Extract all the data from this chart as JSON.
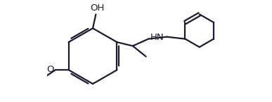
{
  "background_color": "#ffffff",
  "line_color": "#1a1a2e",
  "line_width": 1.6,
  "font_size": 9.5,
  "figsize": [
    3.87,
    1.46
  ],
  "dpi": 100,
  "xlim": [
    -1.8,
    5.2
  ],
  "ylim": [
    -1.8,
    2.2
  ]
}
